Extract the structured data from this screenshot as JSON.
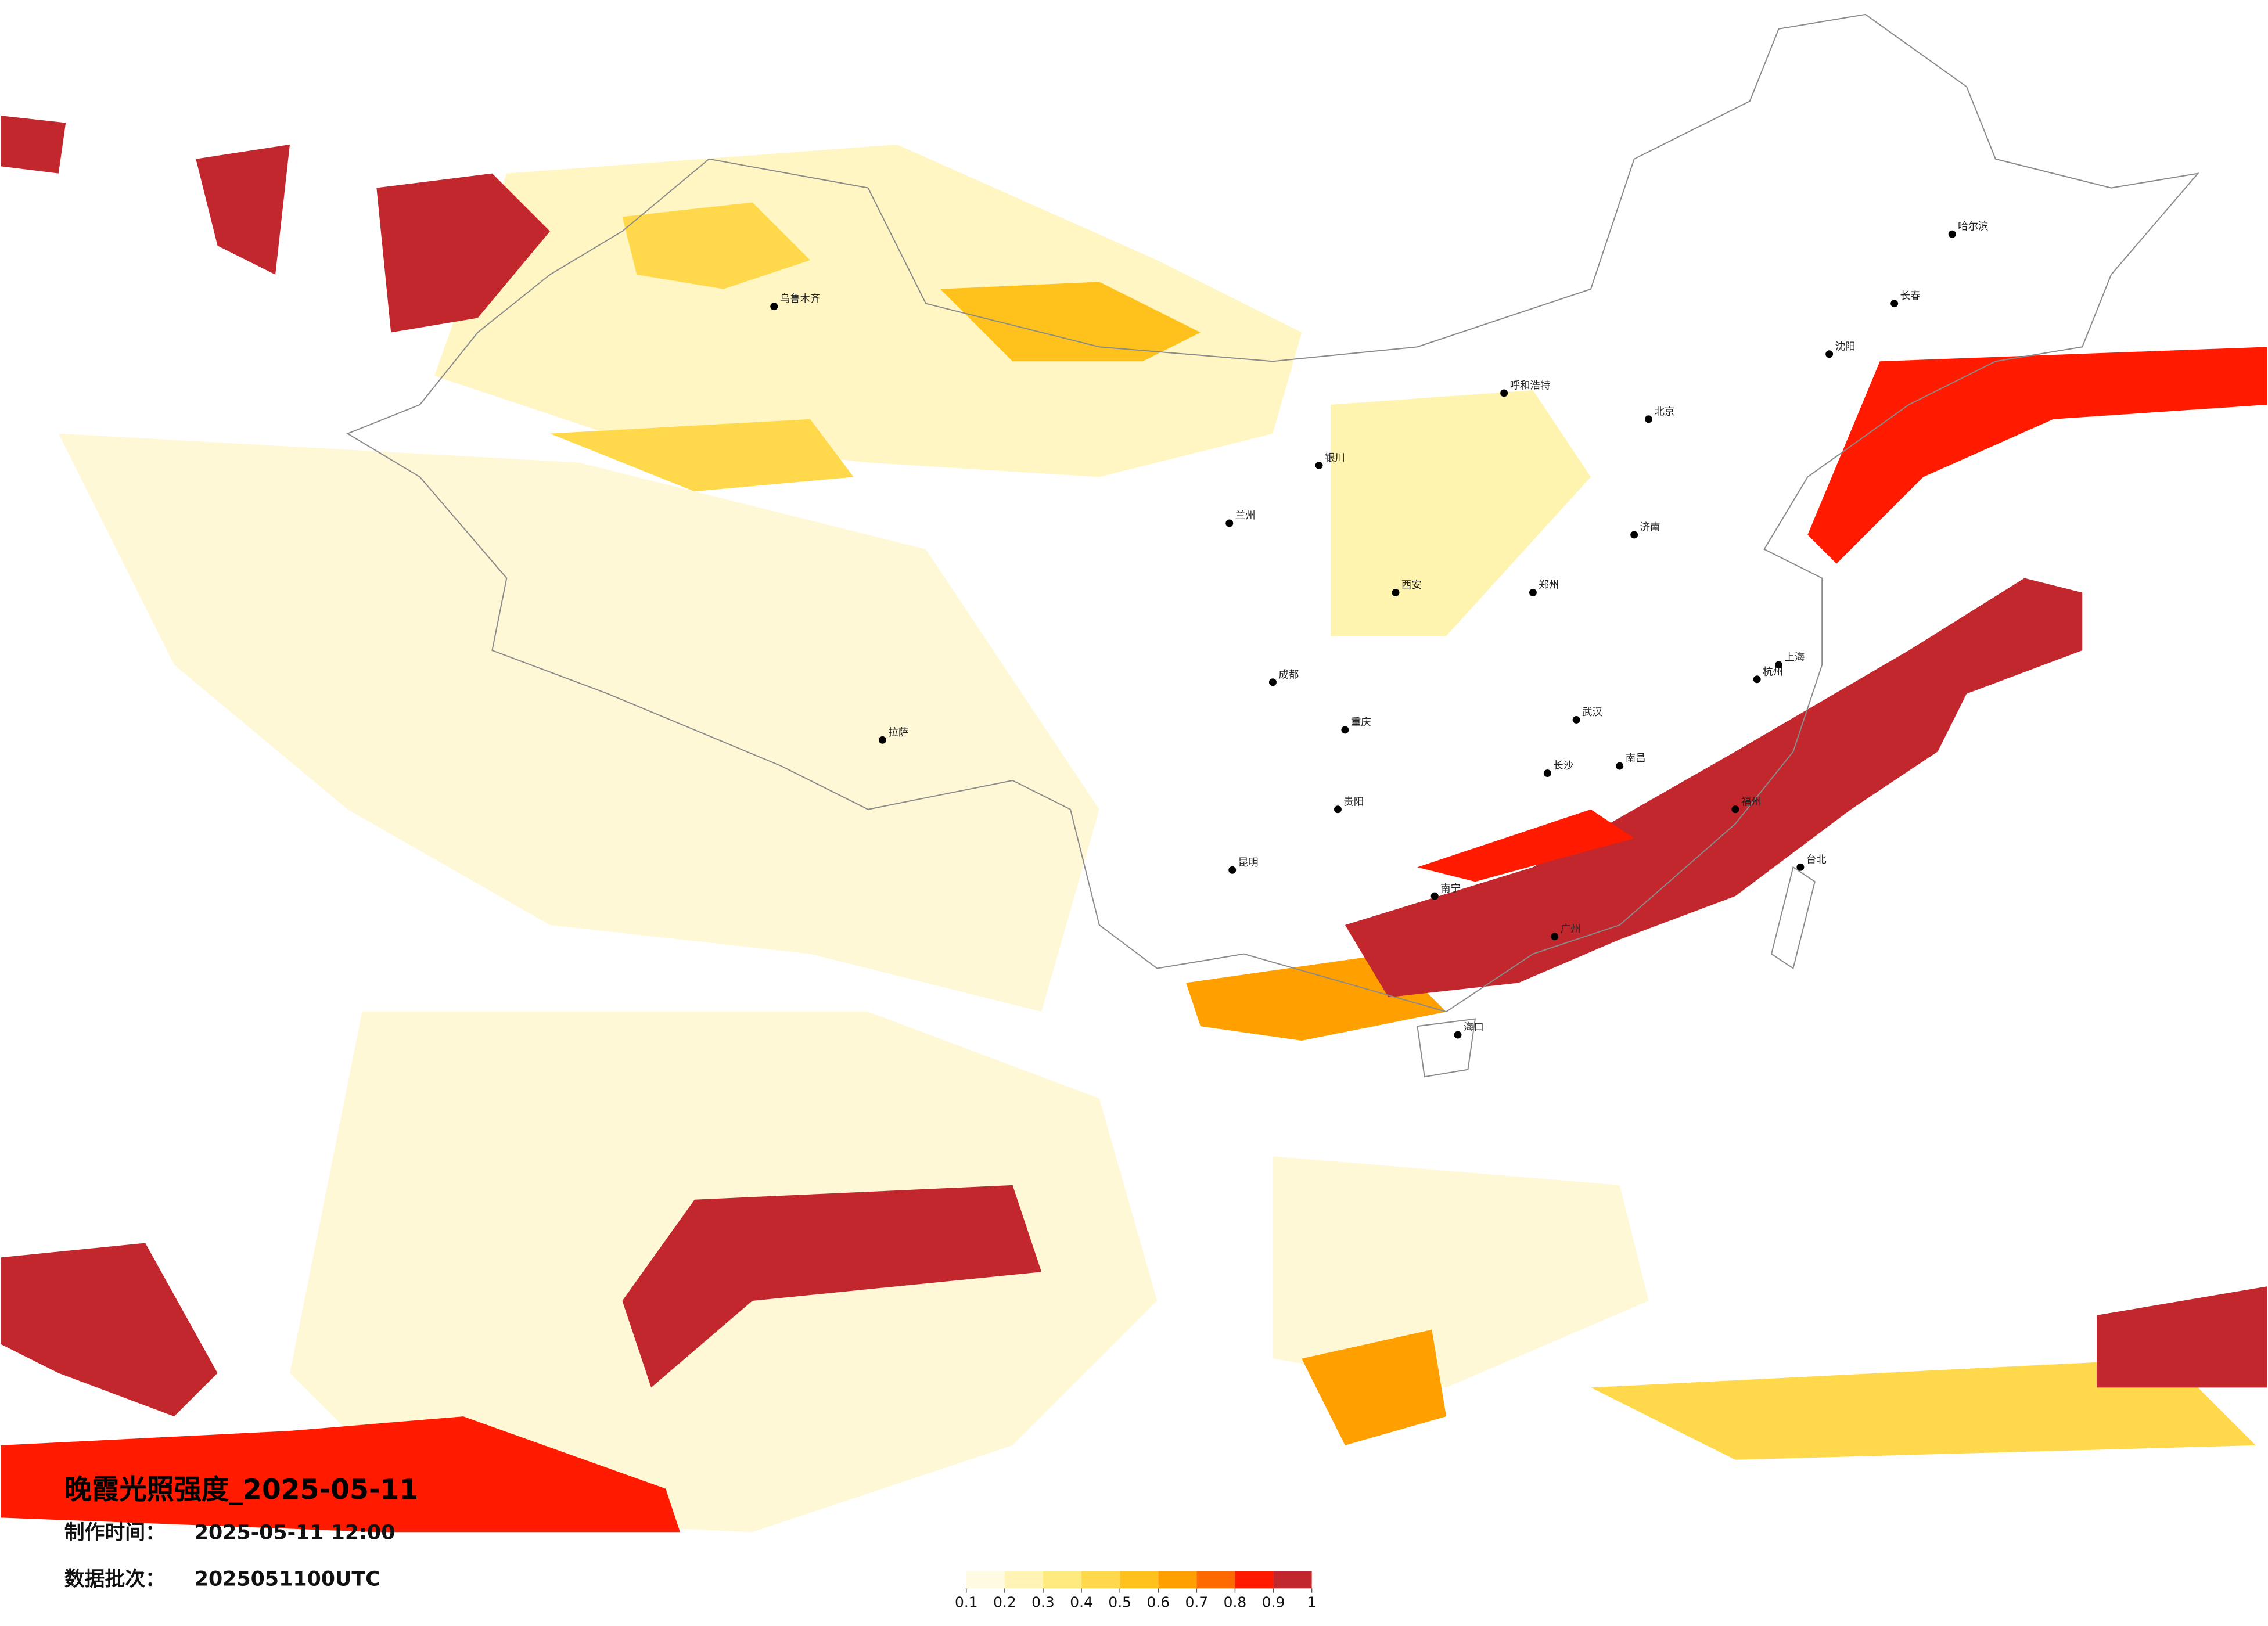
{
  "title": "晚霞光照强度_2025-05-11",
  "production_time": {
    "label": "制作时间：",
    "value": "2025-05-11 12:00"
  },
  "data_batch": {
    "label": "数据批次：",
    "value": "2025051100UTC"
  },
  "legend": {
    "ticks": [
      0.1,
      0.2,
      0.3,
      0.4,
      0.5,
      0.6,
      0.7,
      0.8,
      0.9,
      1
    ],
    "colors": [
      "#fffbe3",
      "#fff4b5",
      "#ffea80",
      "#ffd84c",
      "#ffc21c",
      "#ff9f00",
      "#ff6a00",
      "#ff1a00",
      "#c1272d"
    ]
  },
  "cities": [
    "北京",
    "上海",
    "广州",
    "成都",
    "重庆",
    "武汉",
    "长沙",
    "哈尔滨",
    "沈阳",
    "西安",
    "兰州",
    "乌鲁木齐",
    "拉萨",
    "昆明",
    "南宁",
    "海口",
    "台北",
    "呼和浩特",
    "银川",
    "郑州",
    "南昌",
    "福州",
    "杭州",
    "济南",
    "长春",
    "贵阳"
  ]
}
